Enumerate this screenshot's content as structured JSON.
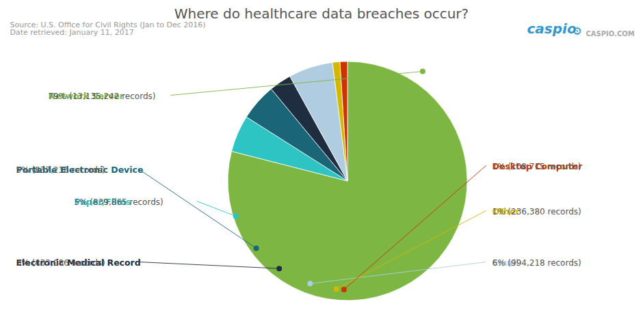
{
  "chart_data": {
    "type": "pie",
    "title": "Where do healthcare data breaches occur?",
    "categories": [
      "Network Server",
      "Paper/Films",
      "Portable Electronic Device",
      "Electronic Medical Record",
      "Email",
      "Other",
      "Desktop Computer"
    ],
    "values": [
      79,
      5,
      5,
      3,
      6,
      1,
      1
    ],
    "value_labels": [
      "79% (13,135,242 records)",
      "5% (839,865 records)",
      "5% (837,236 records)",
      "3% (433,086 records)",
      "6% (994,218 records)",
      "1% (236,380 records)",
      "1% (108,715 records)"
    ],
    "colors": [
      "#7db642",
      "#2ec4c4",
      "#1a6678",
      "#1e2d40",
      "#b0cce0",
      "#d4b800",
      "#cc3300"
    ],
    "annotations": [
      "Source: U.S. Office for Civil Rights (Jan to Dec 2016)\nDate retrieved: January 11, 2017",
      "caspio",
      "⚙",
      "CASPIO.COM"
    ]
  }
}
